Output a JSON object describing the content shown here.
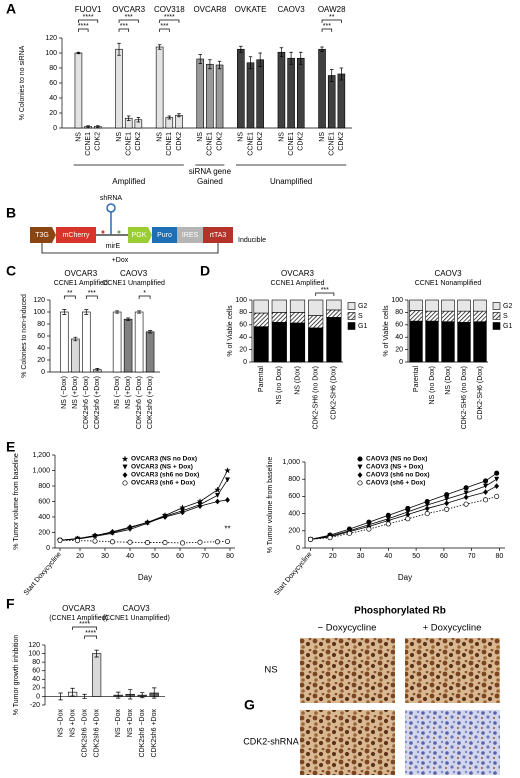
{
  "panel_labels": [
    "A",
    "B",
    "C",
    "D",
    "E",
    "F",
    "G"
  ],
  "chart_data": [
    {
      "type": "bar",
      "ylabel": "% Colonies to no siRNA",
      "ylim": [
        0,
        120
      ],
      "yticks": [
        0,
        20,
        40,
        60,
        80,
        100,
        120
      ],
      "categories": [
        "NS",
        "CCNE1",
        "CDK2",
        "NS",
        "CCNE1",
        "CDK2",
        "NS",
        "CCNE1",
        "CDK2",
        "NS",
        "CCNE1",
        "CDK2",
        "NS",
        "CCNE1",
        "CDK2",
        "NS",
        "CCNE1",
        "CDK2",
        "NS",
        "CCNE1",
        "CDK2"
      ],
      "values": [
        100,
        2,
        2,
        105,
        13,
        11,
        108,
        14,
        17,
        92,
        85,
        84,
        105,
        87,
        91,
        101,
        93,
        93,
        105,
        70,
        72
      ],
      "errors": [
        1,
        1,
        1,
        8,
        3,
        3,
        3,
        2,
        2,
        6,
        6,
        5,
        4,
        8,
        9,
        6,
        8,
        8,
        3,
        8,
        8
      ],
      "colors": [
        "#e3e3e3",
        "#e3e3e3",
        "#e3e3e3",
        "#e3e3e3",
        "#e3e3e3",
        "#e3e3e3",
        "#e3e3e3",
        "#e3e3e3",
        "#e3e3e3",
        "#9a9a9a",
        "#9a9a9a",
        "#9a9a9a",
        "#404040",
        "#404040",
        "#404040",
        "#404040",
        "#404040",
        "#404040",
        "#404040",
        "#404040",
        "#404040"
      ],
      "groups": [
        {
          "name": "FUOV1",
          "stars": [
            "****",
            "****"
          ]
        },
        {
          "name": "OVCAR3",
          "stars": [
            "***",
            "***"
          ]
        },
        {
          "name": "COV318",
          "stars": [
            "****",
            "***"
          ]
        },
        {
          "name": "OVCAR8"
        },
        {
          "name": "OVKATE"
        },
        {
          "name": "CAOV3"
        },
        {
          "name": "OAW28",
          "stars": [
            "**",
            "***"
          ]
        }
      ],
      "xlabel": "siRNA gene",
      "classes": [
        "Amplified",
        "Gained",
        "Unamplified"
      ]
    },
    {
      "type": "bar",
      "ylabel": "% Colonies to non-induced",
      "ylim": [
        0,
        120
      ],
      "yticks": [
        0,
        20,
        40,
        60,
        80,
        100,
        120
      ],
      "categories": [
        "NS (−Dox)",
        "NS (+Dox)",
        "CDK2sh6 (−Dox)",
        "CDK2sh6 (+Dox)",
        "NS (−Dox)",
        "NS (+Dox)",
        "CDK2sh6 (−Dox)",
        "CDK2sh6 (+Dox)"
      ],
      "values": [
        100,
        55,
        100,
        4,
        100,
        88,
        100,
        67
      ],
      "errors": [
        4,
        3,
        4,
        2,
        2,
        2,
        2,
        2
      ],
      "colors": [
        "#ffffff",
        "#d9d9d9",
        "#ffffff",
        "#d9d9d9",
        "#ffffff",
        "#808080",
        "#ffffff",
        "#808080"
      ],
      "groups": [
        {
          "name": "OVCAR3",
          "subtitle": "CCNE1 Amplified",
          "stars": [
            "**",
            "***"
          ]
        },
        {
          "name": "CAOV3",
          "subtitle": "CCNE1 Unamplified",
          "stars": [
            "*"
          ]
        }
      ]
    },
    {
      "type": "stacked_bar",
      "title": "OVCAR3",
      "subtitle": "CCNE1 Amplified",
      "ylabel": "% of Viable cells",
      "ylim": [
        0,
        100
      ],
      "yticks": [
        0,
        20,
        40,
        60,
        80,
        100
      ],
      "categories": [
        "Parental",
        "NS (no Dox)",
        "NS (Dox)",
        "CDK2-SH6 (no Dox)",
        "CDK2-SH6 (Dox)"
      ],
      "series": [
        {
          "name": "G1",
          "color": "#000000",
          "values": [
            57,
            64,
            63,
            55,
            72
          ]
        },
        {
          "name": "S",
          "color": "#ffffff",
          "pattern": "hatch",
          "values": [
            22,
            16,
            17,
            20,
            12
          ]
        },
        {
          "name": "G2",
          "color": "#e6e6e6",
          "values": [
            21,
            20,
            20,
            25,
            16
          ]
        }
      ],
      "stars": [
        "***"
      ]
    },
    {
      "type": "stacked_bar",
      "title": "CAOV3",
      "subtitle": "CCNE1 Nonamplified",
      "ylabel": "% of Viable cells",
      "ylim": [
        0,
        100
      ],
      "yticks": [
        0,
        20,
        40,
        60,
        80,
        100
      ],
      "categories": [
        "Parental",
        "NS (no Dox)",
        "NS (Dox)",
        "CDK2-SH6 (no Dox)",
        "CDK2-SH6 (Dox)"
      ],
      "series": [
        {
          "name": "G1",
          "color": "#000000",
          "values": [
            66,
            66,
            65,
            64,
            65
          ]
        },
        {
          "name": "S",
          "color": "#ffffff",
          "pattern": "hatch",
          "values": [
            17,
            16,
            17,
            18,
            17
          ]
        },
        {
          "name": "G2",
          "color": "#e6e6e6",
          "values": [
            17,
            18,
            18,
            18,
            18
          ]
        }
      ]
    },
    {
      "type": "line",
      "xlabel": "Day",
      "ylabel": "% Tumor volume from baseline",
      "xlim": [
        10,
        82
      ],
      "ylim": [
        0,
        1200
      ],
      "xticks": [
        {
          "value": 12,
          "label": "Start Doxycycline"
        },
        20,
        30,
        40,
        50,
        60,
        70,
        80
      ],
      "yticks": [
        0,
        200,
        400,
        600,
        800,
        {
          "value": 1000,
          "label": "1,000"
        },
        {
          "value": 1200,
          "label": "1,200"
        }
      ],
      "x": [
        12,
        19,
        26,
        33,
        40,
        47,
        54,
        61,
        68,
        75,
        79
      ],
      "series": [
        {
          "name": "OVCAR3 (NS no Dox)",
          "color": "#000000",
          "marker": "star",
          "values": [
            100,
            120,
            160,
            200,
            260,
            330,
            420,
            520,
            600,
            750,
            1000
          ]
        },
        {
          "name": "OVCAR3 (NS + Dox)",
          "color": "#000000",
          "marker": "triangle-down",
          "values": [
            100,
            115,
            150,
            190,
            240,
            320,
            410,
            480,
            560,
            680,
            880
          ]
        },
        {
          "name": "OVCAR3 (sh6 no Dox)",
          "color": "#000000",
          "marker": "diamond",
          "values": [
            100,
            120,
            160,
            210,
            270,
            330,
            400,
            460,
            540,
            600,
            620
          ]
        },
        {
          "name": "OVCAR3 (sh6 + Dox)",
          "color": "#000000",
          "marker": "circle-open",
          "line_style": "dotted",
          "values": [
            100,
            95,
            90,
            80,
            75,
            70,
            70,
            65,
            75,
            80,
            85
          ]
        }
      ],
      "annotation": "**"
    },
    {
      "type": "line",
      "xlabel": "Day",
      "ylabel": "% Tumor volume from baseline",
      "xlim": [
        10,
        82
      ],
      "ylim": [
        0,
        1000
      ],
      "xticks": [
        {
          "value": 12,
          "label": "Start Doxycycline"
        },
        20,
        30,
        40,
        50,
        60,
        70,
        80
      ],
      "yticks": [
        0,
        200,
        400,
        600,
        800,
        {
          "value": 1000,
          "label": "1,000"
        }
      ],
      "x": [
        12,
        19,
        26,
        33,
        40,
        47,
        54,
        61,
        68,
        75,
        79
      ],
      "series": [
        {
          "name": "CAOV3 (NS no Dox)",
          "color": "#000000",
          "marker": "circle",
          "values": [
            100,
            150,
            220,
            300,
            380,
            460,
            540,
            620,
            700,
            780,
            870
          ]
        },
        {
          "name": "CAOV3 (NS + Dox)",
          "color": "#000000",
          "marker": "triangle-down",
          "values": [
            100,
            140,
            200,
            270,
            340,
            420,
            500,
            570,
            640,
            720,
            800
          ]
        },
        {
          "name": "CAOV3 (sh6 no Dox)",
          "color": "#000000",
          "marker": "diamond",
          "values": [
            100,
            130,
            190,
            250,
            320,
            390,
            460,
            520,
            590,
            650,
            720
          ]
        },
        {
          "name": "CAOV3 (sh6 + Dox)",
          "color": "#000000",
          "marker": "circle-open",
          "line_style": "dotted",
          "values": [
            100,
            120,
            170,
            220,
            280,
            340,
            400,
            450,
            510,
            560,
            600
          ]
        }
      ]
    },
    {
      "type": "bar",
      "ylabel": "% Tumor growth inhibition",
      "ylim": [
        -20,
        120
      ],
      "yticks": [
        -20,
        0,
        20,
        40,
        60,
        80,
        100,
        120
      ],
      "categories": [
        "NS −Dox",
        "NS +Dox",
        "CDK2sh6 −Dox",
        "CDK2sh6 +Dox",
        "NS −Dox",
        "NS +Dox",
        "CDK2sh6 −Dox",
        "CDK2sh6 +Dox"
      ],
      "values": [
        0,
        10,
        0,
        100,
        3,
        5,
        3,
        8
      ],
      "errors": [
        8,
        9,
        5,
        8,
        7,
        11,
        6,
        12
      ],
      "colors": [
        "#f0f0f0",
        "#f0f0f0",
        "#f0f0f0",
        "#d9d9d9",
        "#666666",
        "#666666",
        "#666666",
        "#666666"
      ],
      "groups": [
        {
          "name": "OVCAR3",
          "subtitle": "(CCNE1 Amplified)",
          "stars": [
            "****",
            "****"
          ]
        },
        {
          "name": "CAOV3",
          "subtitle": "(CCNE1 Unamplified)"
        }
      ]
    }
  ],
  "diagram": {
    "elements": [
      "T3G",
      "mCherry",
      "PGK",
      "Puro",
      "IRES",
      "rtTA3"
    ],
    "shrna": "shRNA",
    "mire": "mirE",
    "inducible": "Inducible",
    "dox": "+Dox"
  },
  "micrographs": {
    "title": "Phosphorylated Rb",
    "columns": [
      "− Doxycycline",
      "+ Doxycycline"
    ],
    "rows": [
      "NS",
      "CDK2-shRNA"
    ]
  }
}
